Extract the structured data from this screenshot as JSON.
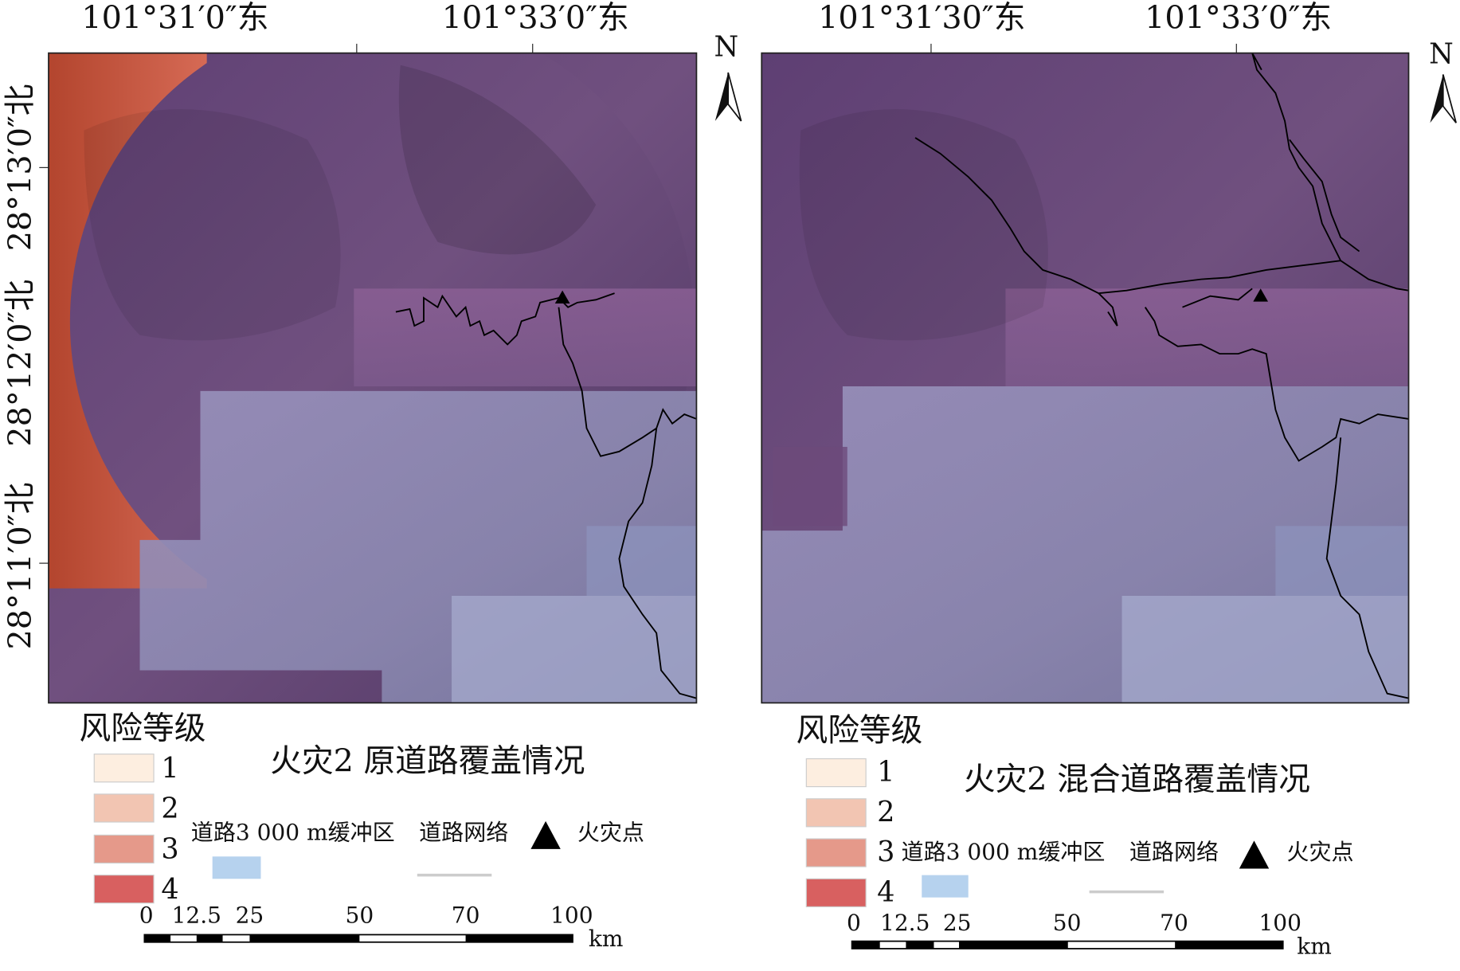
{
  "panels": [
    {
      "top_labels": [
        "101°31′0″东",
        "101°33′0″东"
      ],
      "left_labels": [
        "28°13′0″北",
        "28°12′0″北",
        "28°11′0″北"
      ],
      "north": "N",
      "legend_title": "风险等级",
      "risk_levels": [
        "1",
        "2",
        "3",
        "4"
      ],
      "caption": "火灾2 原道路覆盖情况",
      "legend_items": [
        "道路3 000 m缓冲区",
        "道路网络",
        "火灾点"
      ],
      "scale_labels": [
        "0",
        "12.5",
        "25",
        "50",
        "70",
        "100"
      ],
      "scale_unit": "km"
    },
    {
      "top_labels": [
        "101°31′30″东",
        "101°33′0″东"
      ],
      "north": "N",
      "legend_title": "风险等级",
      "risk_levels": [
        "1",
        "2",
        "3",
        "4"
      ],
      "caption": "火灾2 混合道路覆盖情况",
      "legend_items": [
        "道路3 000 m缓冲区",
        "道路网络",
        "火灾点"
      ],
      "scale_labels": [
        "0",
        "12.5",
        "25",
        "50",
        "70",
        "100"
      ],
      "scale_unit": "km"
    }
  ]
}
